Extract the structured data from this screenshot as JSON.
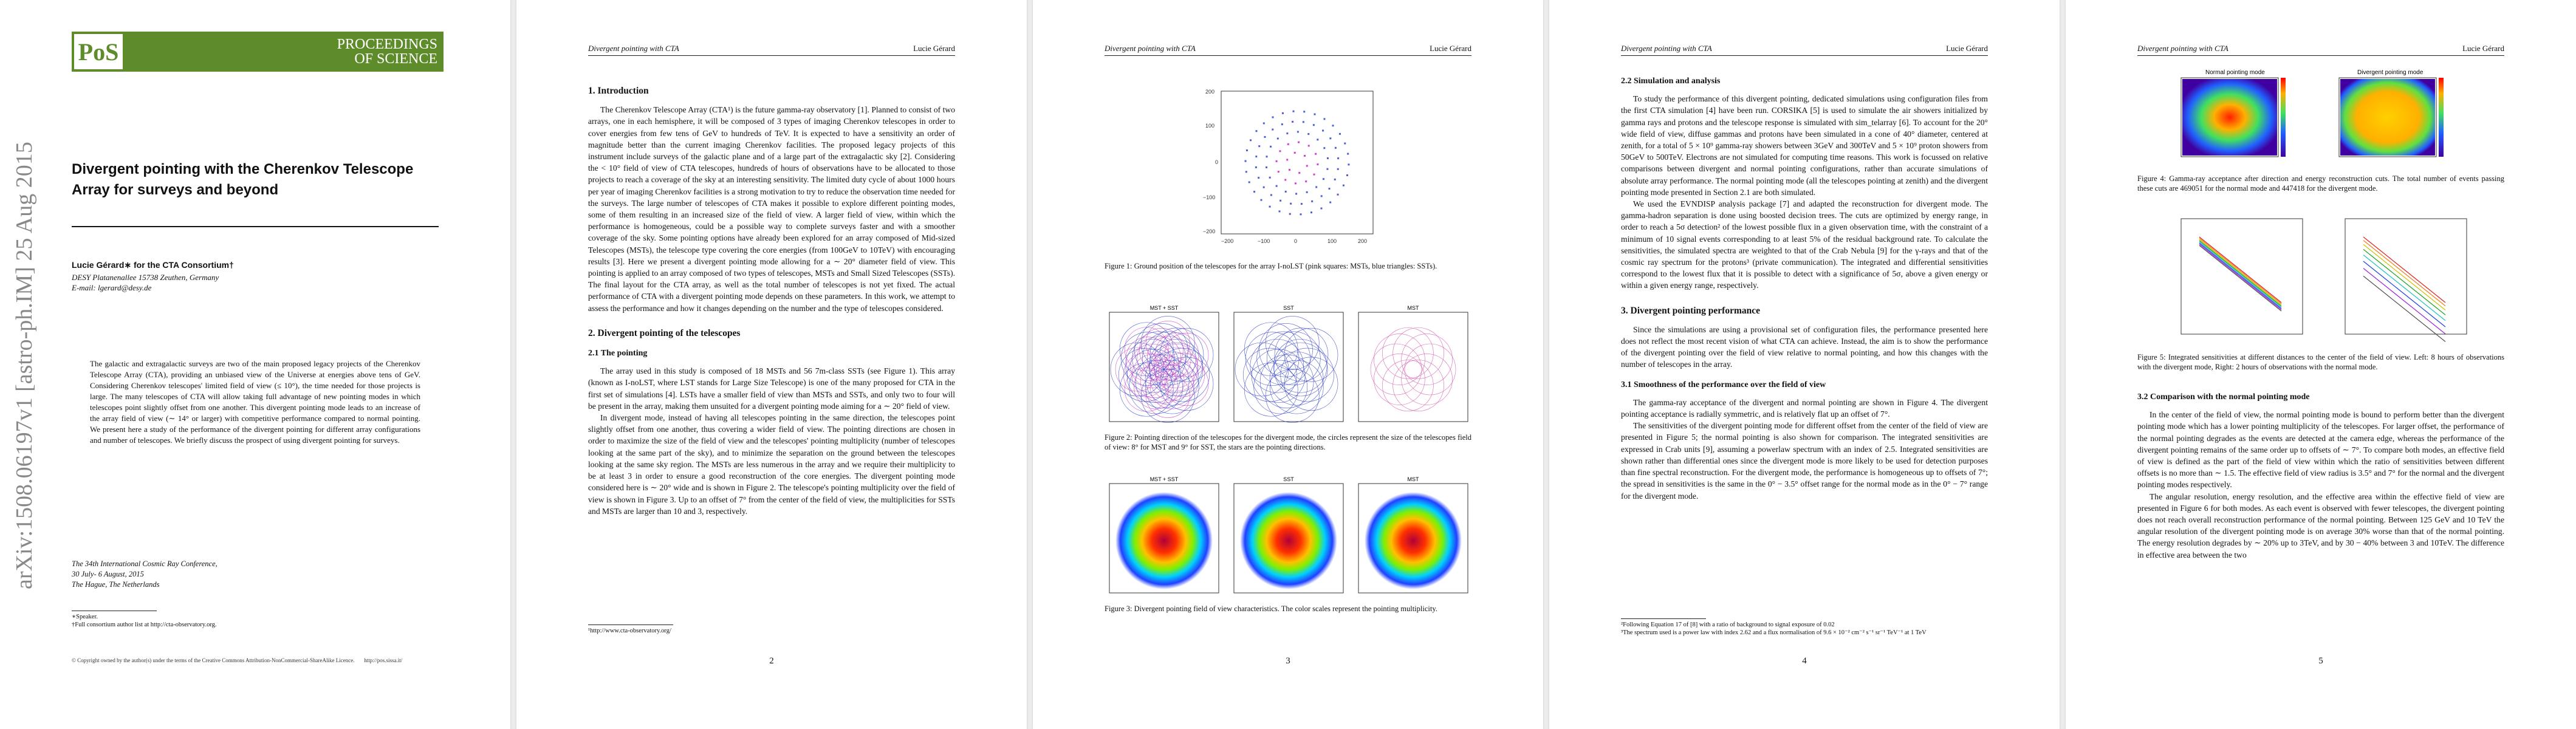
{
  "arxiv_stamp": "arXiv:1508.06197v1  [astro-ph.IM]  25 Aug 2015",
  "logo": {
    "ps": "PoS",
    "line1": "PROCEEDINGS",
    "line2": "OF SCIENCE"
  },
  "running_title": "Divergent pointing with CTA",
  "running_author": "Lucie Gérard",
  "page1": {
    "title": "Divergent pointing with the Cherenkov Telescope Array for surveys and beyond",
    "author": "Lucie Gérard∗ for the CTA Consortium†",
    "affiliation": "DESY Platanenallee 15738 Zeuthen, Germany",
    "email": "E-mail: lgerard@desy.de",
    "abstract": "The galactic and extragalactic surveys are two of the main proposed legacy projects of the Cherenkov Telescope Array (CTA), providing an unbiased view of the Universe at energies above tens of GeV. Considering Cherenkov telescopes' limited field of view (≤ 10°), the time needed for those projects is large. The many telescopes of CTA will allow taking full advantage of new pointing modes in which telescopes point slightly offset from one another. This divergent pointing mode leads to an increase of the array field of view (∼ 14° or larger) with competitive performance compared to normal pointing. We present here a study of the performance of the divergent pointing for different array configurations and number of telescopes. We briefly discuss the prospect of using divergent pointing for surveys.",
    "conference": [
      "The 34th International Cosmic Ray Conference,",
      "30 July- 6 August, 2015",
      "The Hague, The Netherlands"
    ],
    "footnotes": [
      "∗Speaker.",
      "†Full consortium author list at http://cta-observatory.org."
    ],
    "copyright": "© Copyright owned by the author(s) under the terms of the Creative Commons Attribution-NonCommercial-ShareAlike Licence.",
    "url": "http://pos.sissa.it/"
  },
  "page2": {
    "h_intro": "1. Introduction",
    "intro": "The Cherenkov Telescope Array (CTA¹) is the future gamma-ray observatory [1]. Planned to consist of two arrays, one in each hemisphere, it will be composed of 3 types of imaging Cherenkov telescopes in order to cover energies from few tens of GeV to hundreds of TeV. It is expected to have a sensitivity an order of magnitude better than the current imaging Cherenkov facilities. The proposed legacy projects of this instrument include surveys of the galactic plane and of a large part of the extragalactic sky [2]. Considering the < 10° field of view of CTA telescopes, hundreds of hours of observations have to be allocated to those projects to reach a coverage of the sky at an interesting sensitivity. The limited duty cycle of about 1000 hours per year of imaging Cherenkov facilities is a strong motivation to try to reduce the observation time needed for the surveys. The large number of telescopes of CTA makes it possible to explore different pointing modes, some of them resulting in an increased size of the field of view. A larger field of view, within which the performance is homogeneous, could be a possible way to complete surveys faster and with a smoother coverage of the sky. Some pointing options have already been explored for an array composed of Mid-sized Telescopes (MSTs), the telescope type covering the core energies (from 100GeV to 10TeV) with encouraging results [3]. Here we present a divergent pointing mode allowing for a ∼ 20° diameter field of view. This pointing is applied to an array composed of two types of telescopes, MSTs and Small Sized Telescopes (SSTs). The final layout for the CTA array, as well as the total number of telescopes is not yet fixed. The actual performance of CTA with a divergent pointing mode depends on these parameters. In this work, we attempt to assess the performance and how it changes depending on the number and the type of telescopes considered.",
    "h_div": "2. Divergent pointing of the telescopes",
    "h_point": "2.1 The pointing",
    "point1": "The array used in this study is composed of 18 MSTs and 56 7m-class SSTs (see Figure 1). This array (known as I-noLST, where LST stands for Large Size Telescope) is one of the many proposed for CTA in the first set of simulations [4]. LSTs have a smaller field of view than MSTs and SSTs, and only two to four will be present in the array, making them unsuited for a divergent pointing mode aiming for a ∼ 20° field of view.",
    "point2": "In divergent mode, instead of having all telescopes pointing in the same direction, the telescopes point slightly offset from one another, thus covering a wider field of view. The pointing directions are chosen in order to maximize the size of the field of view and the telescopes' pointing multiplicity (number of telescopes looking at the same part of the sky), and to minimize the separation on the ground between the telescopes looking at the same sky region. The MSTs are less numerous in the array and we require their multiplicity to be at least 3 in order to ensure a good reconstruction of the core energies. The divergent pointing mode considered here is ∼ 20° wide and is shown in Figure 2. The telescope's pointing multiplicity over the field of view is shown in Figure 3. Up to an offset of 7° from the center of the field of view, the multiplicities for SSTs and MSTs are larger than 10 and 3, respectively.",
    "footnote": "¹http://www.cta-observatory.org/"
  },
  "page3": {
    "fig1_caption": "Figure 1: Ground position of the telescopes for the array I-noLST (pink squares: MSTs, blue triangles: SSTs).",
    "fig2_panels": [
      "MST + SST",
      "SST",
      "MST"
    ],
    "fig2_caption": "Figure 2: Pointing direction of the telescopes for the divergent mode, the circles represent the size of the telescopes field of view: 8° for MST and 9° for SST, the stars are the pointing directions.",
    "fig3_panels": [
      "MST + SST",
      "SST",
      "MST"
    ],
    "fig3_caption": "Figure 3: Divergent pointing field of view characteristics. The color scales represent the pointing multiplicity."
  },
  "page4": {
    "h_sim": "2.2 Simulation and analysis",
    "sim1": "To study the performance of this divergent pointing, dedicated simulations using configuration files from the first CTA simulation [4] have been run. CORSIKA [5] is used to simulate the air showers initialized by gamma rays and protons and the telescope response is simulated with sim_telarray [6]. To account for the 20° wide field of view, diffuse gammas and protons have been simulated in a cone of 40° diameter, centered at zenith, for a total of 5 × 10⁹ gamma-ray showers between 3GeV and 300TeV and 5 × 10⁹ proton showers from 50GeV to 500TeV. Electrons are not simulated for computing time reasons. This work is focussed on relative comparisons between divergent and normal pointing configurations, rather than accurate simulations of absolute array performance. The normal pointing mode (all the telescopes pointing at zenith) and the divergent pointing mode presented in Section 2.1 are both simulated.",
    "sim2": "We used the EVNDISP analysis package [7] and adapted the reconstruction for divergent mode. The gamma-hadron separation is done using boosted decision trees. The cuts are optimized by energy range, in order to reach a 5σ detection² of the lowest possible flux in a given observation time, with the constraint of a minimum of 10 signal events corresponding to at least 5% of the residual background rate. To calculate the sensitivities, the simulated spectra are weighted to that of the Crab Nebula [9] for the γ-rays and that of the cosmic ray spectrum for the protons³ (private communication). The integrated and differential sensitivities correspond to the lowest flux that it is possible to detect with a significance of 5σ, above a given energy or within a given energy range, respectively.",
    "h_perf": "3. Divergent pointing performance",
    "perf": "Since the simulations are using a provisional set of configuration files, the performance presented here does not reflect the most recent vision of what CTA can achieve. Instead, the aim is to show the performance of the divergent pointing over the field of view relative to normal pointing, and how this changes with the number of telescopes in the array.",
    "h_smooth": "3.1 Smoothness of the performance over the field of view",
    "smooth1": "The gamma-ray acceptance of the divergent and normal pointing are shown in Figure 4. The divergent pointing acceptance is radially symmetric, and is relatively flat up an offset of 7°.",
    "smooth2": "The sensitivities of the divergent pointing mode for different offset from the center of the field of view are presented in Figure 5; the normal pointing is also shown for comparison. The integrated sensitivities are expressed in Crab units [9], assuming a powerlaw spectrum with an index of 2.5. Integrated sensitivities are shown rather than differential ones since the divergent mode is more likely to be used for detection purposes than fine spectral reconstruction. For the divergent mode, the performance is homogeneous up to offsets of 7°; the spread in sensitivities is the same in the 0° − 3.5° offset range for the normal mode as in the 0° − 7° range for the divergent mode.",
    "footnotes": [
      "²Following Equation 17 of [8] with a ratio of background to signal exposure of 0.02",
      "³The spectrum used is a power law with index 2.62 and a flux normalisation of 9.6 × 10⁻² cm⁻² s⁻¹ sr⁻¹ TeV⁻¹ at 1 TeV"
    ]
  },
  "page5": {
    "fig4_panels": [
      "Normal pointing mode",
      "Divergent pointing mode"
    ],
    "fig4_caption": "Figure 4: Gamma-ray acceptance after direction and energy reconstruction cuts. The total number of events passing these cuts are 469051 for the normal mode and 447418 for the divergent mode.",
    "fig5_caption": "Figure 5: Integrated sensitivities at different distances to the center of the field of view. Left: 8 hours of observations with the divergent mode, Right: 2 hours of observations with the normal mode.",
    "h_cmp": "3.2 Comparison with the normal pointing mode",
    "cmp1": "In the center of the field of view, the normal pointing mode is bound to perform better than the divergent pointing mode which has a lower pointing multiplicity of the telescopes. For larger offset, the performance of the normal pointing degrades as the events are detected at the camera edge, whereas the performance of the divergent pointing remains of the same order up to offsets of ∼ 7°. To compare both modes, an effective field of view is defined as the part of the field of view within which the ratio of sensitivities between different offsets is no more than ∼ 1.5. The effective field of view radius is 3.5° and 7° for the normal and the divergent pointing modes respectively.",
    "cmp2": "The angular resolution, energy resolution, and the effective area within the effective field of view are presented in Figure 6 for both modes. As each event is observed with fewer telescopes, the divergent pointing does not reach overall reconstruction performance of the normal pointing. Between 125 GeV and 10 TeV the angular resolution of the divergent pointing mode is on average 30% worse than that of the normal pointing. The energy resolution degrades by ∼ 20% up to 3TeV, and by 30 − 40% between 3 and 10TeV. The difference in effective area between the two"
  },
  "page_numbers": [
    "",
    "2",
    "3",
    "4",
    "5"
  ]
}
